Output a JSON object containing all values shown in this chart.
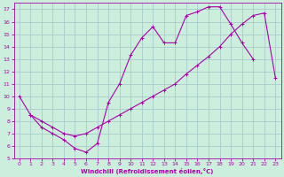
{
  "xlabel": "Windchill (Refroidissement éolien,°C)",
  "bg_color": "#cceedd",
  "grid_color": "#aacccc",
  "line_color": "#aa00aa",
  "xlim": [
    -0.5,
    23.5
  ],
  "ylim": [
    5,
    17.5
  ],
  "xticks": [
    0,
    1,
    2,
    3,
    4,
    5,
    6,
    7,
    8,
    9,
    10,
    11,
    12,
    13,
    14,
    15,
    16,
    17,
    18,
    19,
    20,
    21,
    22,
    23
  ],
  "yticks": [
    5,
    6,
    7,
    8,
    9,
    10,
    11,
    12,
    13,
    14,
    15,
    16,
    17
  ],
  "line1_x": [
    0,
    1,
    2,
    3,
    4,
    5,
    6,
    7,
    8,
    9,
    10,
    11,
    12,
    13,
    14,
    15,
    16,
    17,
    18,
    19,
    20,
    21
  ],
  "line1_y": [
    10,
    8.5,
    7.5,
    7.0,
    6.5,
    5.8,
    5.5,
    6.2,
    9.5,
    11.0,
    13.3,
    14.7,
    15.6,
    14.3,
    14.3,
    16.5,
    16.8,
    17.2,
    17.2,
    15.8,
    14.3,
    13.0
  ],
  "line2_x": [
    1,
    2,
    3,
    4,
    5,
    6,
    7,
    8,
    9,
    10,
    11,
    12,
    13,
    14,
    15,
    16,
    17,
    18,
    19,
    20,
    21,
    22,
    23
  ],
  "line2_y": [
    8.5,
    8.0,
    7.5,
    7.0,
    6.8,
    7.0,
    7.5,
    8.0,
    8.5,
    9.0,
    9.5,
    10.0,
    10.5,
    11.0,
    11.8,
    12.5,
    13.2,
    14.0,
    15.0,
    15.8,
    16.5,
    16.7,
    11.5
  ]
}
